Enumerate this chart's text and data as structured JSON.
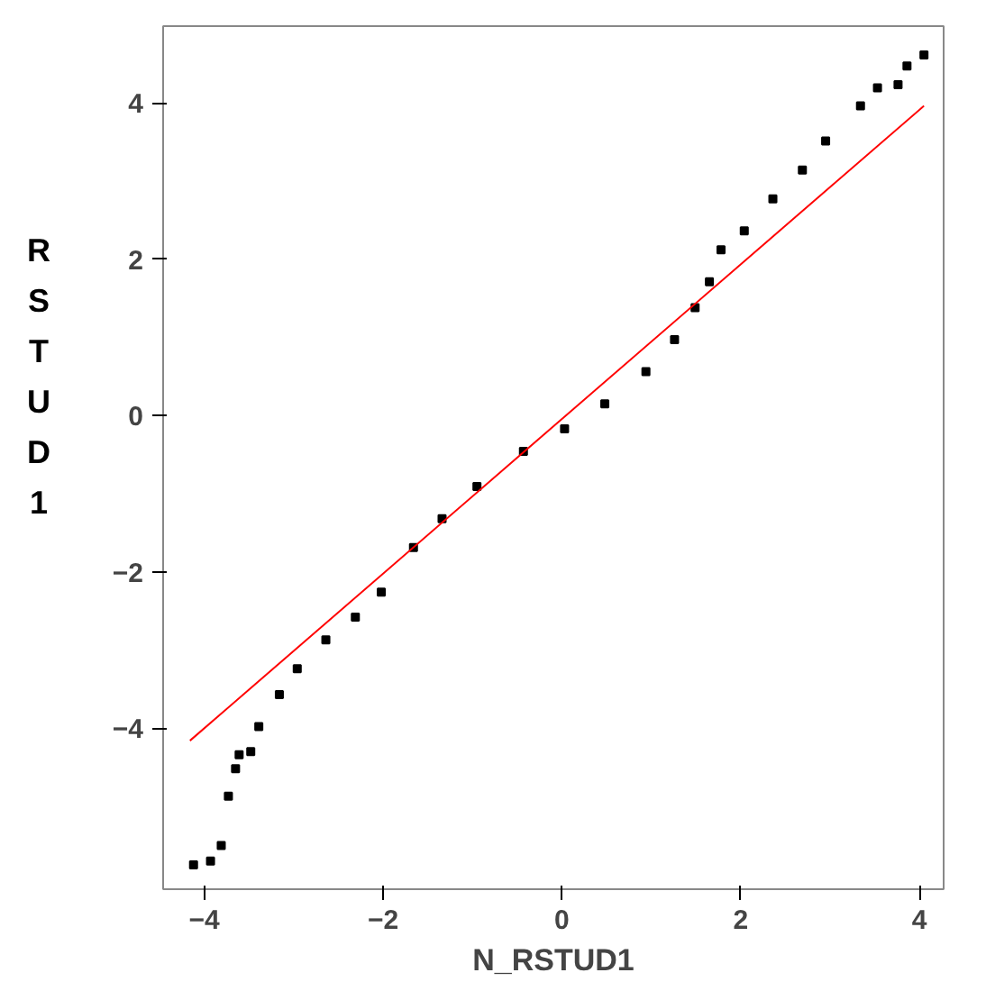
{
  "chart_data": {
    "type": "scatter",
    "xlabel": "N_RSTUD1",
    "ylabel": "RSTUD1",
    "xlim": [
      -4.46,
      4.27
    ],
    "ylim": [
      -6.06,
      4.98
    ],
    "xticks": [
      -4,
      -2,
      0,
      2,
      4
    ],
    "yticks": [
      -4,
      -2,
      0,
      2,
      4
    ],
    "grid": false,
    "series": [
      {
        "color": "#000000",
        "marker": "square",
        "x": [
          -4.12,
          -3.93,
          -3.81,
          -3.73,
          -3.65,
          -3.61,
          -3.48,
          -3.39,
          -3.16,
          -2.96,
          -2.64,
          -2.31,
          -2.02,
          -1.66,
          -1.34,
          -0.95,
          -0.43,
          0.03,
          0.48,
          0.94,
          1.26,
          1.49,
          1.65,
          1.78,
          2.04,
          2.36,
          2.69,
          2.95,
          3.34,
          3.53,
          3.76,
          3.86,
          4.05
        ],
        "values": [
          -5.75,
          -5.7,
          -5.5,
          -4.87,
          -4.52,
          -4.34,
          -4.3,
          -3.98,
          -3.57,
          -3.24,
          -2.87,
          -2.58,
          -2.26,
          -1.69,
          -1.32,
          -0.91,
          -0.46,
          -0.17,
          0.15,
          0.56,
          0.97,
          1.38,
          1.71,
          2.12,
          2.36,
          2.77,
          3.14,
          3.51,
          3.96,
          4.19,
          4.23,
          4.47,
          4.61
        ]
      },
      {
        "type": "line",
        "color": "#ff0000",
        "x": [
          -4.16,
          4.05
        ],
        "values": [
          -4.16,
          3.96
        ]
      }
    ]
  }
}
